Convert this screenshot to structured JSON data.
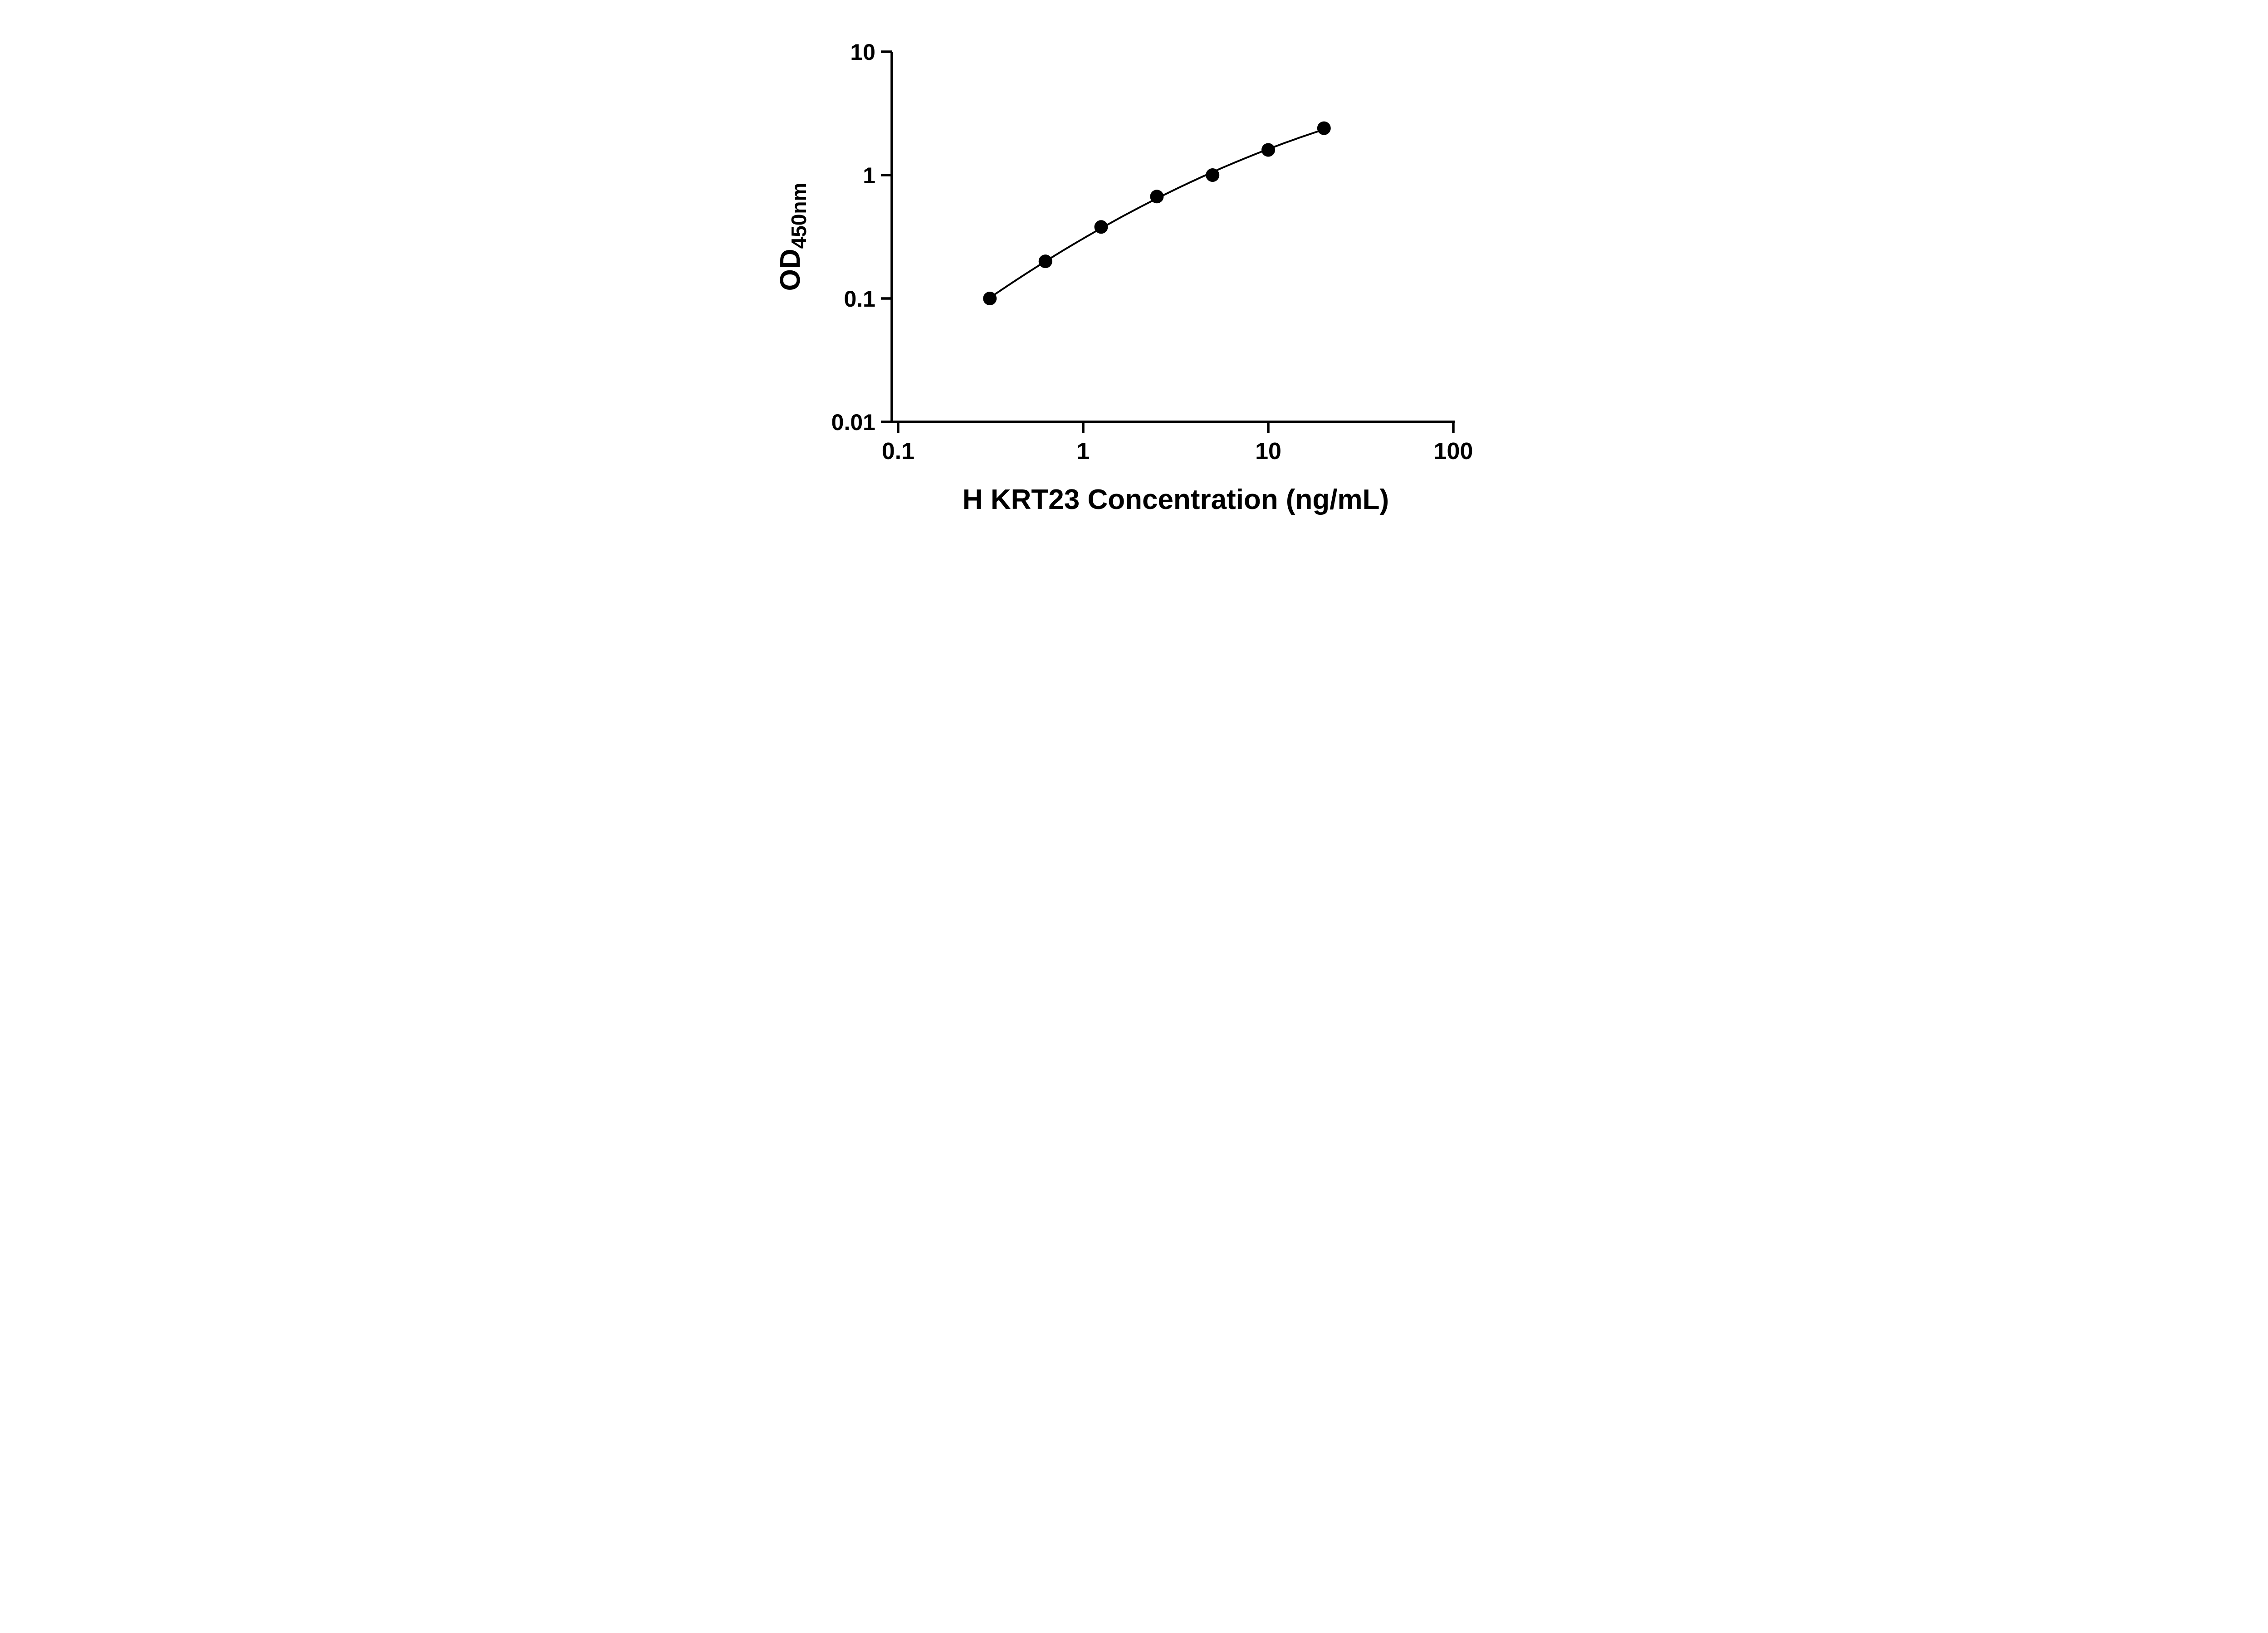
{
  "chart_data": {
    "type": "scatter",
    "title": "",
    "xlabel": "H KRT23 Concentration (ng/mL)",
    "ylabel_main": "OD",
    "ylabel_sub": "450nm",
    "x_scale": "log",
    "y_scale": "log",
    "xlim": [
      0.1,
      100
    ],
    "ylim": [
      0.01,
      10
    ],
    "grid": false,
    "legend": "none",
    "x_ticks": [
      {
        "value": 0.1,
        "label": "0.1"
      },
      {
        "value": 1,
        "label": "1"
      },
      {
        "value": 10,
        "label": "10"
      },
      {
        "value": 100,
        "label": "100"
      }
    ],
    "y_ticks": [
      {
        "value": 0.01,
        "label": "0.01"
      },
      {
        "value": 0.1,
        "label": "0.1"
      },
      {
        "value": 1,
        "label": "1"
      },
      {
        "value": 10,
        "label": "10"
      }
    ],
    "points": [
      {
        "x": 0.313,
        "y": 0.1
      },
      {
        "x": 0.625,
        "y": 0.2
      },
      {
        "x": 1.25,
        "y": 0.38
      },
      {
        "x": 2.5,
        "y": 0.67
      },
      {
        "x": 5,
        "y": 1.0
      },
      {
        "x": 10,
        "y": 1.6
      },
      {
        "x": 20,
        "y": 2.4
      }
    ],
    "fit": "quadratic least-squares in log-log space, drawn from first to last point",
    "colors": {
      "marker": "#000000",
      "line": "#000000",
      "axis": "#000000",
      "background": "#ffffff"
    }
  }
}
